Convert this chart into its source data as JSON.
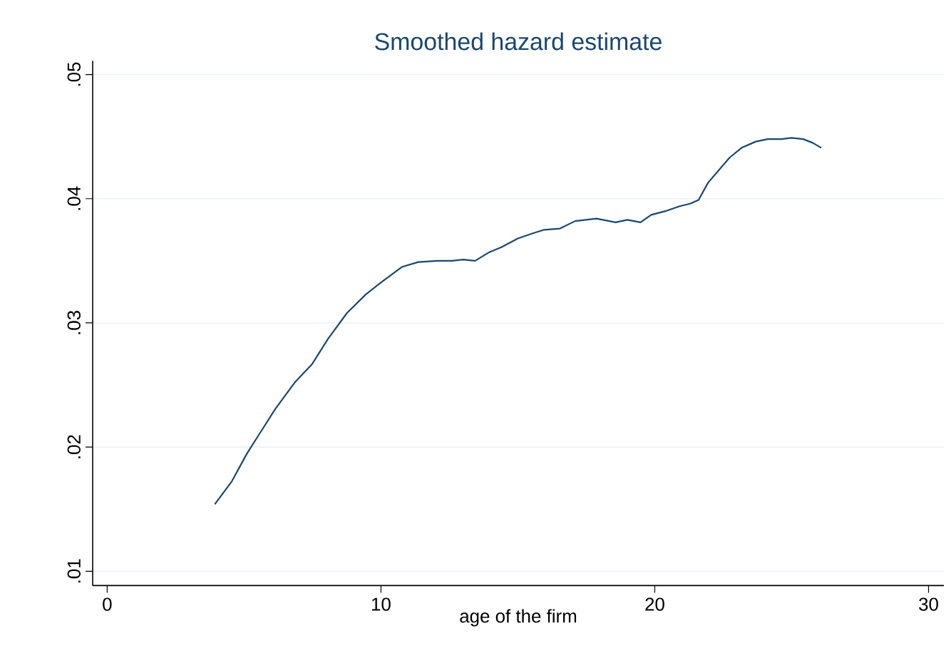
{
  "chart_data": {
    "type": "line",
    "title": "Smoothed hazard estimate",
    "xlabel": "age of the firm",
    "x": [
      3.93,
      4.54,
      5.11,
      5.6,
      6.15,
      6.85,
      7.49,
      8.06,
      8.76,
      9.45,
      9.97,
      10.76,
      11.36,
      12.06,
      12.58,
      13.01,
      13.44,
      13.96,
      14.4,
      15.0,
      15.53,
      15.96,
      16.54,
      17.09,
      17.87,
      18.57,
      19.0,
      19.48,
      19.87,
      20.39,
      20.91,
      21.29,
      21.6,
      21.95,
      22.3,
      22.73,
      23.17,
      23.69,
      24.12,
      24.64,
      24.99,
      25.42,
      25.77,
      26.08
    ],
    "series": [
      {
        "color": "#1a476f",
        "values": [
          0.0154,
          0.0172,
          0.0195,
          0.0212,
          0.0231,
          0.0252,
          0.0267,
          0.0287,
          0.0308,
          0.0323,
          0.0332,
          0.0345,
          0.0349,
          0.035,
          0.035,
          0.0351,
          0.035,
          0.0357,
          0.0361,
          0.0368,
          0.0372,
          0.0375,
          0.0376,
          0.0382,
          0.0384,
          0.0381,
          0.0383,
          0.0381,
          0.0387,
          0.039,
          0.0394,
          0.0396,
          0.0399,
          0.0413,
          0.0422,
          0.0433,
          0.0441,
          0.0446,
          0.0448,
          0.0448,
          0.0449,
          0.0448,
          0.0445,
          0.0441
        ]
      }
    ],
    "xlim": [
      -0.53,
      30.56
    ],
    "ylim": [
      0.00885,
      0.0511
    ],
    "xticks": [
      0,
      10,
      20,
      30
    ],
    "yticks": [
      {
        "value": 0.01,
        "label": ".01"
      },
      {
        "value": 0.02,
        "label": ".02"
      },
      {
        "value": 0.03,
        "label": ".03"
      },
      {
        "value": 0.04,
        "label": ".04"
      },
      {
        "value": 0.05,
        "label": ".05"
      }
    ],
    "grid": "y",
    "line_style": "solid",
    "marker": "none",
    "legend": false
  }
}
